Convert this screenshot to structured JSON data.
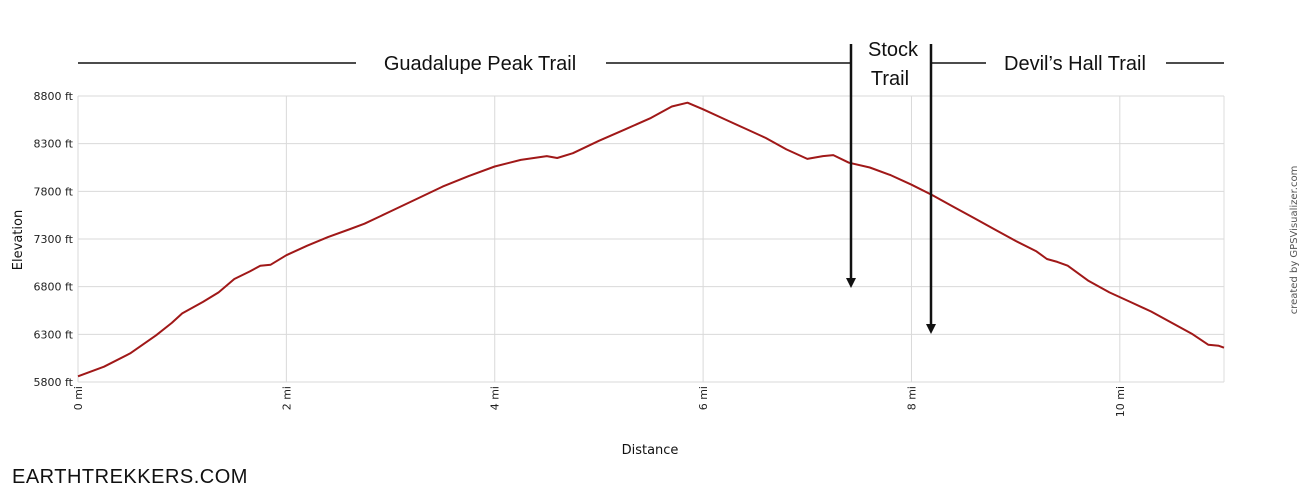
{
  "chart_data": {
    "type": "line",
    "xlabel": "Distance",
    "ylabel": "Elevation",
    "xlim": [
      0,
      11
    ],
    "ylim": [
      5800,
      8800
    ],
    "x_ticks": [
      {
        "value": 0,
        "label": "0 mi"
      },
      {
        "value": 2,
        "label": "2 mi"
      },
      {
        "value": 4,
        "label": "4 mi"
      },
      {
        "value": 6,
        "label": "6 mi"
      },
      {
        "value": 8,
        "label": "8 mi"
      },
      {
        "value": 10,
        "label": "10 mi"
      }
    ],
    "y_ticks": [
      {
        "value": 5800,
        "label": "5800 ft"
      },
      {
        "value": 6300,
        "label": "6300 ft"
      },
      {
        "value": 6800,
        "label": "6800 ft"
      },
      {
        "value": 7300,
        "label": "7300 ft"
      },
      {
        "value": 7800,
        "label": "7800 ft"
      },
      {
        "value": 8300,
        "label": "8300 ft"
      },
      {
        "value": 8800,
        "label": "8800 ft"
      }
    ],
    "grid": true,
    "series": [
      {
        "color": "#a01818",
        "points": [
          [
            0,
            5860
          ],
          [
            0.25,
            5960
          ],
          [
            0.5,
            6100
          ],
          [
            0.75,
            6290
          ],
          [
            0.9,
            6420
          ],
          [
            1.0,
            6520
          ],
          [
            1.2,
            6640
          ],
          [
            1.35,
            6740
          ],
          [
            1.5,
            6880
          ],
          [
            1.65,
            6960
          ],
          [
            1.75,
            7020
          ],
          [
            1.85,
            7030
          ],
          [
            2.0,
            7130
          ],
          [
            2.2,
            7230
          ],
          [
            2.4,
            7320
          ],
          [
            2.6,
            7400
          ],
          [
            2.75,
            7460
          ],
          [
            3.0,
            7590
          ],
          [
            3.25,
            7720
          ],
          [
            3.5,
            7850
          ],
          [
            3.75,
            7960
          ],
          [
            4.0,
            8060
          ],
          [
            4.25,
            8130
          ],
          [
            4.5,
            8170
          ],
          [
            4.6,
            8150
          ],
          [
            4.75,
            8200
          ],
          [
            5.0,
            8330
          ],
          [
            5.25,
            8450
          ],
          [
            5.5,
            8570
          ],
          [
            5.7,
            8690
          ],
          [
            5.85,
            8730
          ],
          [
            6.0,
            8660
          ],
          [
            6.2,
            8560
          ],
          [
            6.4,
            8460
          ],
          [
            6.6,
            8360
          ],
          [
            6.8,
            8240
          ],
          [
            7.0,
            8140
          ],
          [
            7.15,
            8170
          ],
          [
            7.25,
            8180
          ],
          [
            7.4,
            8100
          ],
          [
            7.6,
            8050
          ],
          [
            7.8,
            7970
          ],
          [
            8.0,
            7870
          ],
          [
            8.2,
            7760
          ],
          [
            8.4,
            7640
          ],
          [
            8.6,
            7520
          ],
          [
            8.8,
            7400
          ],
          [
            9.0,
            7280
          ],
          [
            9.2,
            7170
          ],
          [
            9.3,
            7090
          ],
          [
            9.4,
            7060
          ],
          [
            9.5,
            7020
          ],
          [
            9.7,
            6860
          ],
          [
            9.9,
            6740
          ],
          [
            10.1,
            6640
          ],
          [
            10.3,
            6540
          ],
          [
            10.5,
            6420
          ],
          [
            10.7,
            6300
          ],
          [
            10.85,
            6190
          ],
          [
            10.95,
            6180
          ],
          [
            11.0,
            6160
          ]
        ]
      }
    ],
    "annotations": [
      {
        "text": "Guadalupe Peak Trail"
      },
      {
        "text": "Stock"
      },
      {
        "text": "Trail"
      },
      {
        "text": "Devil’s Hall Trail"
      }
    ],
    "credit": "created by GPSVisualizer.com"
  },
  "footer": {
    "brand": "EARTHTREKKERS.COM"
  }
}
